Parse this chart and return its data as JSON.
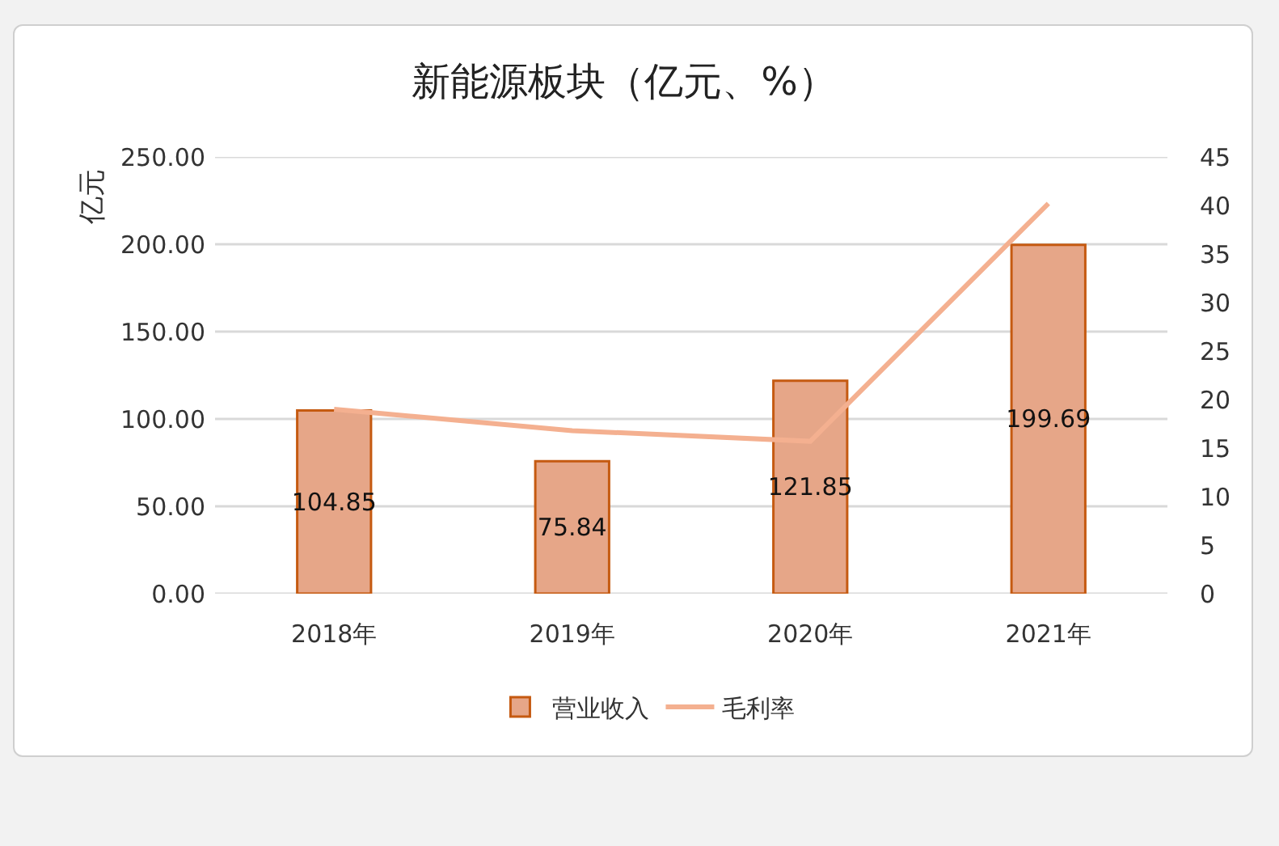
{
  "chart_data": {
    "type": "bar",
    "title": "新能源板块（亿元、%）",
    "ylabel": "亿元",
    "categories": [
      "2018年",
      "2019年",
      "2020年",
      "2021年"
    ],
    "series": [
      {
        "name": "营业收入",
        "color": "#e6a688",
        "values": [
          104.85,
          75.84,
          121.85,
          199.69
        ],
        "value_labels": [
          "104.85",
          "75.84",
          "121.85",
          "199.69"
        ]
      },
      {
        "name": "毛利率",
        "type": "line",
        "axis": "y2",
        "color": "#f4b090",
        "values": [
          19.0,
          16.8,
          15.7,
          40.2
        ]
      }
    ],
    "ylim": [
      0,
      250
    ],
    "yticks": [
      {
        "value": 0,
        "label": "0.00"
      },
      {
        "value": 50,
        "label": "50.00"
      },
      {
        "value": 100,
        "label": "100.00"
      },
      {
        "value": 150,
        "label": "150.00"
      },
      {
        "value": 200,
        "label": "200.00"
      },
      {
        "value": 250,
        "label": "250.00"
      }
    ],
    "y2lim": [
      0,
      45
    ],
    "y2ticks": [
      0,
      5,
      10,
      15,
      20,
      25,
      30,
      35,
      40,
      45
    ],
    "grid": "y",
    "legend": "bottom"
  }
}
